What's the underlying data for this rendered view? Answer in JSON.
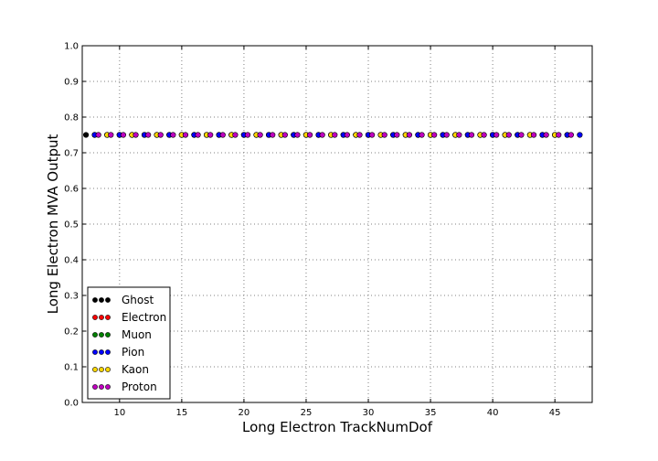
{
  "chart_data": {
    "type": "scatter",
    "xlabel": "Long Electron TrackNumDof",
    "ylabel": "Long Electron MVA Output",
    "xlim": [
      7,
      48
    ],
    "ylim": [
      0.0,
      1.0
    ],
    "x_ticks": [
      "10",
      "15",
      "20",
      "25",
      "30",
      "35",
      "40",
      "45"
    ],
    "y_ticks": [
      "0.0",
      "0.1",
      "0.2",
      "0.3",
      "0.4",
      "0.5",
      "0.6",
      "0.7",
      "0.8",
      "0.9",
      "1.0"
    ],
    "grid": true,
    "legend_position": "lower-left",
    "series": [
      {
        "name": "Ghost",
        "color": "#000000",
        "points": [
          [
            7.3,
            0.75
          ]
        ]
      },
      {
        "name": "Electron",
        "color": "#ff0000",
        "points": [
          [
            8,
            0.75
          ],
          [
            9,
            0.75
          ],
          [
            10,
            0.75
          ],
          [
            11,
            0.75
          ],
          [
            12,
            0.75
          ],
          [
            13,
            0.75
          ],
          [
            14,
            0.75
          ],
          [
            15,
            0.75
          ],
          [
            16,
            0.75
          ],
          [
            17,
            0.75
          ],
          [
            18,
            0.75
          ],
          [
            19,
            0.75
          ],
          [
            20,
            0.75
          ],
          [
            21,
            0.75
          ],
          [
            22,
            0.75
          ],
          [
            23,
            0.75
          ],
          [
            24,
            0.75
          ],
          [
            25,
            0.75
          ],
          [
            26,
            0.75
          ],
          [
            27,
            0.75
          ],
          [
            28,
            0.75
          ],
          [
            29,
            0.75
          ],
          [
            30,
            0.75
          ],
          [
            31,
            0.75
          ],
          [
            32,
            0.75
          ],
          [
            33,
            0.75
          ],
          [
            34,
            0.75
          ],
          [
            35,
            0.75
          ],
          [
            36,
            0.75
          ],
          [
            37,
            0.75
          ],
          [
            38,
            0.75
          ],
          [
            39,
            0.75
          ],
          [
            40,
            0.75
          ],
          [
            41,
            0.75
          ],
          [
            42,
            0.75
          ],
          [
            43,
            0.75
          ],
          [
            44,
            0.75
          ],
          [
            45,
            0.75
          ],
          [
            46,
            0.75
          ]
        ]
      },
      {
        "name": "Muon",
        "color": "#008000",
        "points": [
          [
            8,
            0.75
          ],
          [
            10,
            0.75
          ],
          [
            12,
            0.75
          ],
          [
            14,
            0.75
          ],
          [
            16,
            0.75
          ],
          [
            18,
            0.75
          ],
          [
            20,
            0.75
          ],
          [
            22,
            0.75
          ],
          [
            24,
            0.75
          ],
          [
            26,
            0.75
          ],
          [
            28,
            0.75
          ],
          [
            30,
            0.75
          ],
          [
            32,
            0.75
          ],
          [
            34,
            0.75
          ],
          [
            36,
            0.75
          ],
          [
            38,
            0.75
          ],
          [
            40,
            0.75
          ],
          [
            42,
            0.75
          ],
          [
            44,
            0.75
          ],
          [
            46,
            0.75
          ]
        ]
      },
      {
        "name": "Pion",
        "color": "#0000ff",
        "points": [
          [
            8,
            0.75
          ],
          [
            9,
            0.75
          ],
          [
            10,
            0.75
          ],
          [
            11,
            0.75
          ],
          [
            12,
            0.75
          ],
          [
            13,
            0.75
          ],
          [
            14,
            0.75
          ],
          [
            15,
            0.75
          ],
          [
            16,
            0.75
          ],
          [
            17,
            0.75
          ],
          [
            18,
            0.75
          ],
          [
            19,
            0.75
          ],
          [
            20,
            0.75
          ],
          [
            21,
            0.75
          ],
          [
            22,
            0.75
          ],
          [
            23,
            0.75
          ],
          [
            24,
            0.75
          ],
          [
            25,
            0.75
          ],
          [
            26,
            0.75
          ],
          [
            27,
            0.75
          ],
          [
            28,
            0.75
          ],
          [
            29,
            0.75
          ],
          [
            30,
            0.75
          ],
          [
            31,
            0.75
          ],
          [
            32,
            0.75
          ],
          [
            33,
            0.75
          ],
          [
            34,
            0.75
          ],
          [
            35,
            0.75
          ],
          [
            36,
            0.75
          ],
          [
            37,
            0.75
          ],
          [
            38,
            0.75
          ],
          [
            39,
            0.75
          ],
          [
            40,
            0.75
          ],
          [
            41,
            0.75
          ],
          [
            42,
            0.75
          ],
          [
            43,
            0.75
          ],
          [
            44,
            0.75
          ],
          [
            45,
            0.75
          ],
          [
            46,
            0.75
          ],
          [
            47,
            0.75
          ]
        ]
      },
      {
        "name": "Kaon",
        "color": "#ffd700",
        "points": [
          [
            9,
            0.75
          ],
          [
            11,
            0.75
          ],
          [
            13,
            0.75
          ],
          [
            15,
            0.75
          ],
          [
            17,
            0.75
          ],
          [
            19,
            0.75
          ],
          [
            21,
            0.75
          ],
          [
            23,
            0.75
          ],
          [
            25,
            0.75
          ],
          [
            27,
            0.75
          ],
          [
            29,
            0.75
          ],
          [
            31,
            0.75
          ],
          [
            33,
            0.75
          ],
          [
            35,
            0.75
          ],
          [
            37,
            0.75
          ],
          [
            39,
            0.75
          ],
          [
            41,
            0.75
          ],
          [
            43,
            0.75
          ],
          [
            45,
            0.75
          ]
        ]
      },
      {
        "name": "Proton",
        "color": "#bf00bf",
        "points": [
          [
            8.3,
            0.75
          ],
          [
            9.3,
            0.75
          ],
          [
            10.3,
            0.75
          ],
          [
            11.3,
            0.75
          ],
          [
            12.3,
            0.75
          ],
          [
            13.3,
            0.75
          ],
          [
            14.3,
            0.75
          ],
          [
            15.3,
            0.75
          ],
          [
            16.3,
            0.75
          ],
          [
            17.3,
            0.75
          ],
          [
            18.3,
            0.75
          ],
          [
            19.3,
            0.75
          ],
          [
            20.3,
            0.75
          ],
          [
            21.3,
            0.75
          ],
          [
            22.3,
            0.75
          ],
          [
            23.3,
            0.75
          ],
          [
            24.3,
            0.75
          ],
          [
            25.3,
            0.75
          ],
          [
            26.3,
            0.75
          ],
          [
            27.3,
            0.75
          ],
          [
            28.3,
            0.75
          ],
          [
            29.3,
            0.75
          ],
          [
            30.3,
            0.75
          ],
          [
            31.3,
            0.75
          ],
          [
            32.3,
            0.75
          ],
          [
            33.3,
            0.75
          ],
          [
            34.3,
            0.75
          ],
          [
            35.3,
            0.75
          ],
          [
            36.3,
            0.75
          ],
          [
            37.3,
            0.75
          ],
          [
            38.3,
            0.75
          ],
          [
            39.3,
            0.75
          ],
          [
            40.3,
            0.75
          ],
          [
            41.3,
            0.75
          ],
          [
            42.3,
            0.75
          ],
          [
            43.3,
            0.75
          ],
          [
            44.3,
            0.75
          ],
          [
            45.3,
            0.75
          ],
          [
            46.3,
            0.75
          ]
        ]
      }
    ]
  }
}
